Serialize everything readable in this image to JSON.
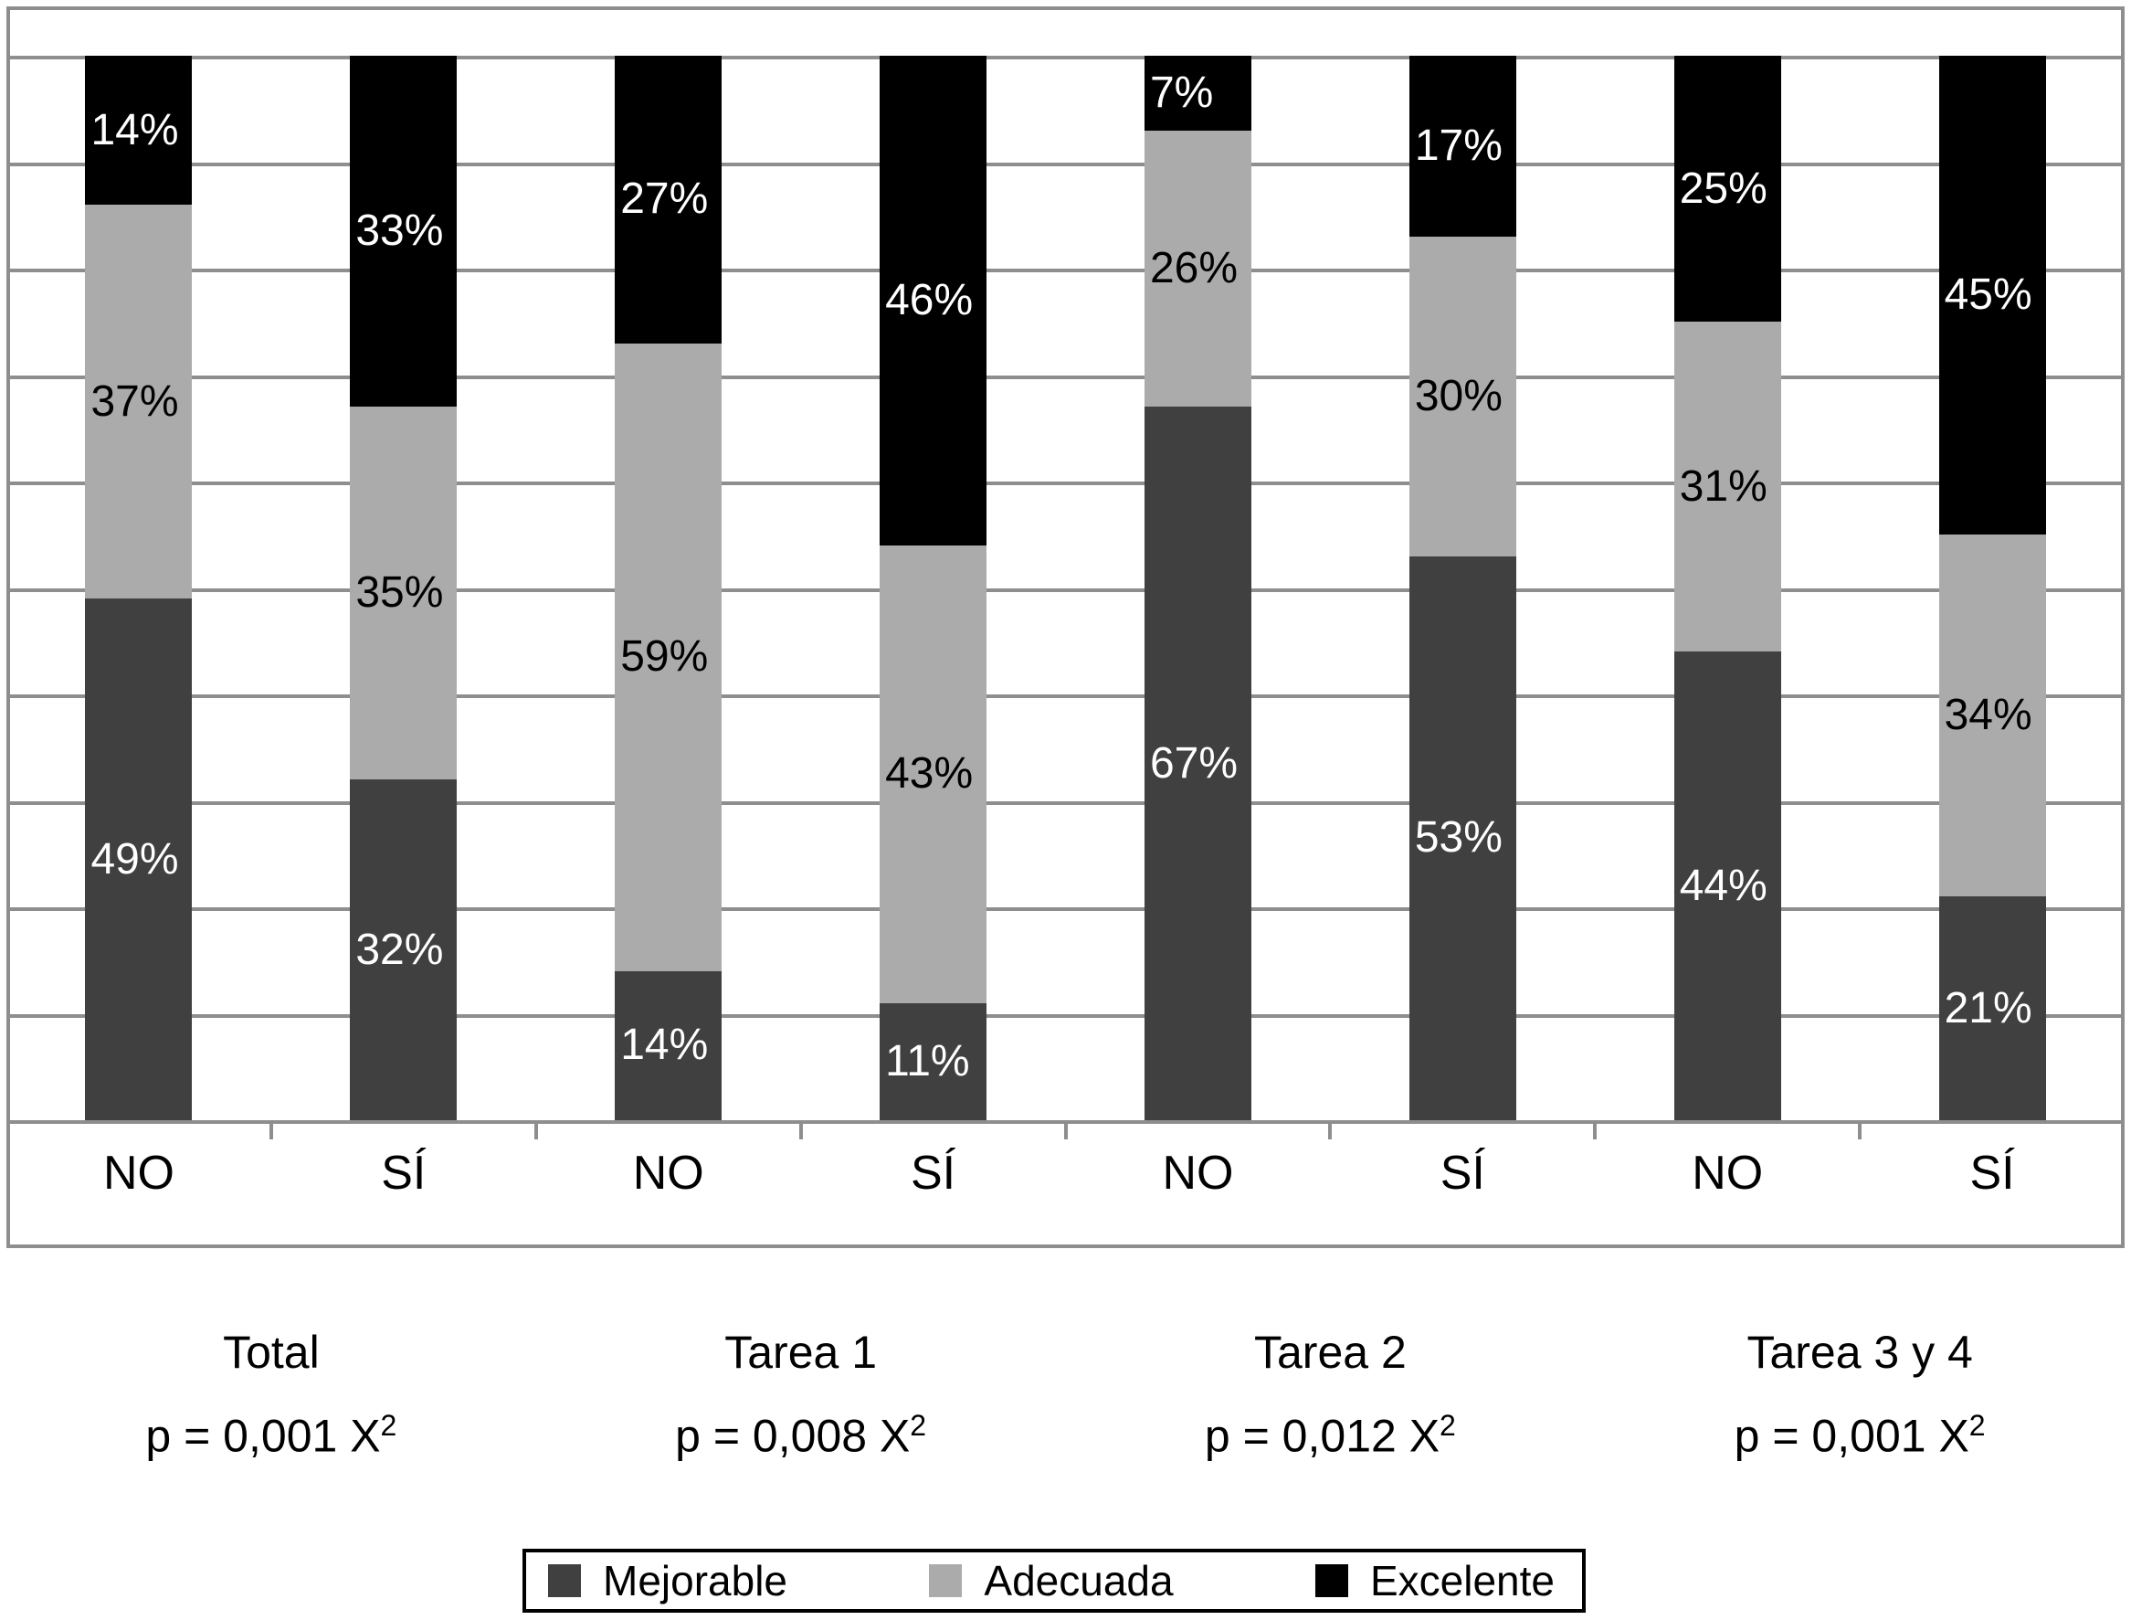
{
  "figure": {
    "background": "#ffffff"
  },
  "colors": {
    "gridline": "#8e8e8e",
    "frame_border": "#8e8e8e",
    "axis": "#8e8e8e",
    "legend_border": "#000000",
    "text": "#000000"
  },
  "chart_data": {
    "type": "bar",
    "stacked": true,
    "orientation": "vertical",
    "unit": "%",
    "ylim": [
      0,
      100
    ],
    "gridline_step": 10,
    "grid": true,
    "legend_position": "bottom",
    "series": [
      {
        "name": "Mejorable",
        "color": "#404040",
        "value_label_color": "#ffffff"
      },
      {
        "name": "Adecuada",
        "color": "#ababab",
        "value_label_color": "#000000"
      },
      {
        "name": "Excelente",
        "color": "#000000",
        "value_label_color": "#ffffff"
      }
    ],
    "groups": [
      {
        "title": "Total",
        "p_text": "p = 0,001 X",
        "p_sup": "2",
        "bars": [
          {
            "category": "NO",
            "values": {
              "Mejorable": 49,
              "Adecuada": 37,
              "Excelente": 14
            }
          },
          {
            "category": "SÍ",
            "values": {
              "Mejorable": 32,
              "Adecuada": 35,
              "Excelente": 33
            }
          }
        ]
      },
      {
        "title": "Tarea 1",
        "p_text": "p = 0,008 X",
        "p_sup": "2",
        "bars": [
          {
            "category": "NO",
            "values": {
              "Mejorable": 14,
              "Adecuada": 59,
              "Excelente": 27
            }
          },
          {
            "category": "SÍ",
            "values": {
              "Mejorable": 11,
              "Adecuada": 43,
              "Excelente": 46
            }
          }
        ]
      },
      {
        "title": "Tarea 2",
        "p_text": "p = 0,012 X",
        "p_sup": "2",
        "bars": [
          {
            "category": "NO",
            "values": {
              "Mejorable": 67,
              "Adecuada": 26,
              "Excelente": 7
            }
          },
          {
            "category": "SÍ",
            "values": {
              "Mejorable": 53,
              "Adecuada": 30,
              "Excelente": 17
            }
          }
        ]
      },
      {
        "title": "Tarea 3 y 4",
        "p_text": "p = 0,001 X",
        "p_sup": "2",
        "bars": [
          {
            "category": "NO",
            "values": {
              "Mejorable": 44,
              "Adecuada": 31,
              "Excelente": 25
            }
          },
          {
            "category": "SÍ",
            "values": {
              "Mejorable": 21,
              "Adecuada": 34,
              "Excelente": 45
            }
          }
        ]
      }
    ]
  }
}
